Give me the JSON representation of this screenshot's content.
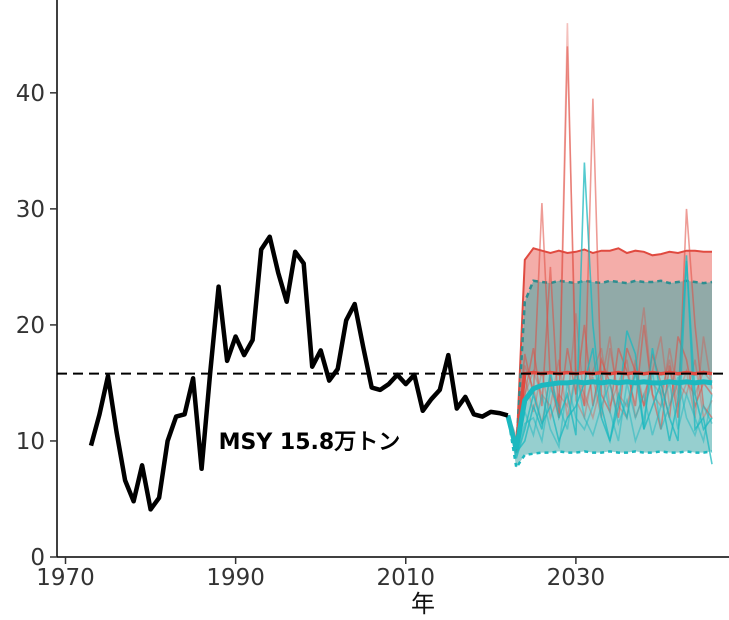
{
  "chart_data": {
    "type": "line",
    "xlabel": "年",
    "ylabel": "",
    "xlim": [
      1969,
      2048
    ],
    "ylim": [
      0,
      48
    ],
    "xticks": [
      1970,
      1990,
      2010,
      2030
    ],
    "yticks": [
      0,
      10,
      20,
      30,
      40
    ],
    "grid": false,
    "reference_line": {
      "y": 15.8,
      "style": "dashed"
    },
    "annotation": {
      "text": "MSY 15.8万トン",
      "x": 1988,
      "y": 10
    },
    "colors": {
      "history": "#000000",
      "band_red": "#f08a84",
      "band_teal": "#3fa8a8",
      "teal_line": "#1bb8bf",
      "red_line": "#e04a40"
    },
    "history": {
      "x": [
        1973,
        1974,
        1975,
        1976,
        1977,
        1978,
        1979,
        1980,
        1981,
        1982,
        1983,
        1984,
        1985,
        1986,
        1987,
        1988,
        1989,
        1990,
        1991,
        1992,
        1993,
        1994,
        1995,
        1996,
        1997,
        1998,
        1999,
        2000,
        2001,
        2002,
        2003,
        2004,
        2005,
        2006,
        2007,
        2008,
        2009,
        2010,
        2011,
        2012,
        2013,
        2014,
        2015,
        2016,
        2017,
        2018,
        2019,
        2020,
        2021,
        2022
      ],
      "y": [
        9.6,
        12.3,
        15.6,
        10.8,
        6.6,
        4.8,
        7.9,
        4.1,
        5.1,
        10.0,
        12.1,
        12.3,
        15.4,
        7.6,
        15.8,
        23.3,
        16.9,
        19.0,
        17.4,
        18.7,
        26.5,
        27.6,
        24.5,
        22.0,
        26.3,
        25.3,
        16.4,
        17.8,
        15.2,
        16.2,
        20.4,
        21.8,
        18.1,
        14.6,
        14.4,
        14.9,
        15.7,
        14.9,
        15.7,
        12.6,
        13.6,
        14.4,
        17.4,
        12.8,
        13.8,
        12.3,
        12.1,
        12.5,
        12.4,
        12.2
      ]
    },
    "projection": {
      "x": [
        2022,
        2023,
        2024,
        2025,
        2026,
        2027,
        2028,
        2029,
        2030,
        2031,
        2032,
        2033,
        2034,
        2035,
        2036,
        2037,
        2038,
        2039,
        2040,
        2041,
        2042,
        2043,
        2044,
        2045,
        2046
      ],
      "red_upper": [
        12.2,
        9.0,
        25.6,
        26.6,
        26.4,
        26.2,
        26.4,
        26.2,
        26.3,
        26.5,
        26.2,
        26.4,
        26.4,
        26.6,
        26.2,
        26.4,
        26.3,
        26.0,
        26.1,
        26.3,
        26.2,
        26.4,
        26.4,
        26.3,
        26.3
      ],
      "red_lower": [
        12.2,
        8.9,
        15.8,
        15.9,
        15.9,
        15.8,
        15.9,
        15.9,
        15.8,
        15.9,
        15.9,
        15.8,
        15.9,
        15.9,
        15.8,
        15.9,
        15.9,
        15.8,
        15.9,
        15.9,
        15.8,
        15.9,
        15.9,
        15.8,
        15.9
      ],
      "teal_upper": [
        12.2,
        9.2,
        22.0,
        23.8,
        23.7,
        23.6,
        23.8,
        23.7,
        23.6,
        23.8,
        23.7,
        23.6,
        23.8,
        23.7,
        23.6,
        23.8,
        23.7,
        23.7,
        23.8,
        23.6,
        23.7,
        23.8,
        23.7,
        23.6,
        23.7
      ],
      "teal_lower": [
        12.2,
        7.7,
        8.8,
        8.9,
        9.0,
        9.0,
        9.1,
        9.0,
        9.0,
        9.1,
        9.0,
        9.0,
        9.1,
        9.0,
        9.0,
        9.1,
        9.0,
        9.0,
        9.1,
        9.0,
        9.0,
        9.1,
        9.0,
        9.0,
        9.1
      ],
      "red_median": [
        12.2,
        9.5,
        15.8,
        15.9,
        15.8,
        15.9,
        15.8,
        15.9,
        15.8,
        15.9,
        15.8,
        15.9,
        15.8,
        15.9,
        15.8,
        15.9,
        15.8,
        15.9,
        15.8,
        15.9,
        15.8,
        15.9,
        15.8,
        15.9,
        15.8
      ],
      "teal_median": [
        12.2,
        9.3,
        13.5,
        14.5,
        14.8,
        14.9,
        15.0,
        15.0,
        15.1,
        15.0,
        15.1,
        15.0,
        15.1,
        15.0,
        15.1,
        15.0,
        15.1,
        15.0,
        15.0,
        15.1,
        15.0,
        15.1,
        15.0,
        15.1,
        15.0
      ],
      "red_samples": [
        [
          12.2,
          10.0,
          17.5,
          14.0,
          30.5,
          15.0,
          12.0,
          44.0,
          16.0,
          13.0,
          39.5,
          14.0,
          12.5,
          18.0,
          16.0,
          13.0,
          20.0,
          14.0,
          11.0,
          16.5,
          12.0,
          30.0,
          20.0,
          13.0,
          12.0
        ],
        [
          12.2,
          9.5,
          14.0,
          18.0,
          13.0,
          25.0,
          12.0,
          18.0,
          14.0,
          20.0,
          13.0,
          17.0,
          15.0,
          12.0,
          18.0,
          16.0,
          13.0,
          17.5,
          15.0,
          12.0,
          19.0,
          17.0,
          13.0,
          15.0,
          14.0
        ],
        [
          12.2,
          10.5,
          15.5,
          12.5,
          16.0,
          12.0,
          14.0,
          13.0,
          21.0,
          13.0,
          15.5,
          12.0,
          18.0,
          14.0,
          13.0,
          16.0,
          21.5,
          14.0,
          13.0,
          18.0,
          14.0,
          16.0,
          12.0,
          19.0,
          14.5
        ],
        [
          12.2,
          9.8,
          16.5,
          14.5,
          11.5,
          15.5,
          13.0,
          46.0,
          13.5,
          12.0,
          16.0,
          18.0,
          13.0,
          15.0,
          17.0,
          12.0,
          14.0,
          16.0,
          19.0,
          13.0,
          15.0,
          14.0,
          17.0,
          12.0,
          13.5
        ],
        [
          12.2,
          10.2,
          14.0,
          16.0,
          14.0,
          13.0,
          17.0,
          12.0,
          16.0,
          14.0,
          12.0,
          15.0,
          19.0,
          13.0,
          12.0,
          17.0,
          13.0,
          15.0,
          14.0,
          17.0,
          13.0,
          15.0,
          14.0,
          16.0,
          15.0
        ]
      ],
      "teal_samples": [
        [
          12.2,
          9.0,
          10.0,
          13.0,
          11.0,
          16.0,
          12.0,
          14.0,
          10.5,
          34.0,
          20.0,
          13.0,
          10.0,
          13.0,
          19.5,
          17.5,
          11.0,
          18.0,
          14.0,
          10.0,
          13.5,
          26.0,
          11.0,
          12.0,
          8.0
        ],
        [
          12.2,
          8.5,
          11.0,
          14.0,
          11.5,
          13.0,
          10.0,
          12.0,
          13.0,
          15.0,
          18.0,
          12.0,
          10.0,
          14.0,
          12.0,
          16.0,
          11.0,
          13.0,
          15.0,
          12.0,
          10.0,
          25.5,
          14.0,
          11.0,
          12.0
        ],
        [
          12.2,
          9.5,
          12.5,
          10.5,
          14.0,
          11.0,
          9.5,
          15.0,
          12.0,
          11.0,
          13.0,
          16.0,
          12.5,
          10.0,
          15.0,
          12.0,
          14.0,
          10.5,
          13.0,
          15.0,
          11.0,
          14.0,
          12.0,
          10.0,
          14.0
        ],
        [
          12.2,
          8.8,
          11.5,
          12.0,
          10.0,
          14.5,
          13.0,
          11.0,
          16.0,
          12.0,
          10.5,
          13.0,
          15.0,
          11.5,
          13.5,
          10.0,
          12.0,
          16.0,
          11.0,
          13.0,
          15.5,
          12.0,
          10.5,
          13.0,
          11.5
        ]
      ]
    }
  }
}
